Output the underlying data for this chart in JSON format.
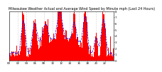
{
  "title": "Milwaukee Weather Actual and Average Wind Speed by Minute mph (Last 24 Hours)",
  "bar_color": "#ff0000",
  "line_color": "#0000ff",
  "background_color": "#ffffff",
  "plot_bg_color": "#ffffff",
  "grid_color": "#aaaaaa",
  "ylim": [
    0,
    8
  ],
  "n_points": 1440,
  "seed": 42,
  "title_fontsize": 3.5,
  "tick_fontsize": 2.8
}
